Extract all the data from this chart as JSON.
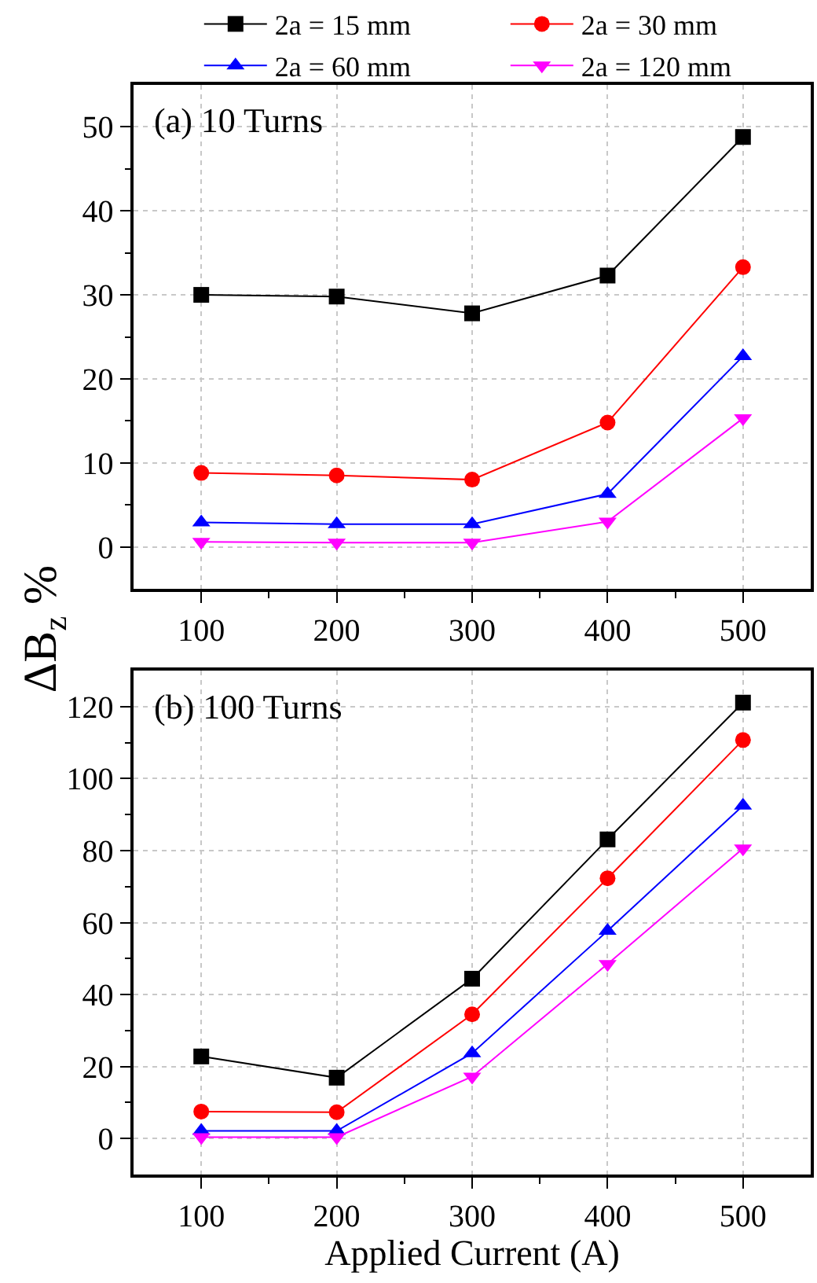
{
  "chart_data": [
    {
      "type": "line",
      "x": [
        100,
        200,
        300,
        400,
        500
      ],
      "xlim": [
        50,
        550
      ],
      "xticks": [
        100,
        {
          "value": 150,
          "label": null
        },
        200,
        {
          "value": 250,
          "label": null
        },
        300,
        {
          "value": 350,
          "label": null
        },
        400,
        {
          "value": 450,
          "label": null
        },
        500
      ],
      "ylim": [
        -5,
        55
      ],
      "yticks": [
        0,
        {
          "value": 5,
          "label": null
        },
        10,
        {
          "value": 15,
          "label": null
        },
        20,
        {
          "value": 25,
          "label": null
        },
        30,
        {
          "value": 35,
          "label": null
        },
        40,
        {
          "value": 45,
          "label": null
        },
        50
      ],
      "ylabel": "ΔB$_{z}$ %",
      "annotations": [
        "(a) 10 Turns"
      ],
      "grid": true,
      "legend": "top",
      "line_style": "solid",
      "series": [
        {
          "name": "2a = 15 mm",
          "color": "#000000",
          "marker": "square",
          "values": [
            30.0,
            29.8,
            27.8,
            32.3,
            48.8
          ]
        },
        {
          "name": "2a = 30 mm",
          "color": "#ff0000",
          "marker": "circle",
          "values": [
            8.8,
            8.5,
            8.0,
            14.8,
            33.3
          ]
        },
        {
          "name": "2a = 60 mm",
          "color": "#0000ff",
          "marker": "triangle",
          "values": [
            2.9,
            2.7,
            2.7,
            6.3,
            22.7
          ]
        },
        {
          "name": "2a = 120 mm",
          "color": "#ff00ff",
          "marker": "triangle-down",
          "values": [
            0.6,
            0.5,
            0.5,
            3.0,
            15.3
          ]
        }
      ]
    },
    {
      "type": "line",
      "x": [
        100,
        200,
        300,
        400,
        500
      ],
      "xlim": [
        50,
        550
      ],
      "xticks": [
        100,
        {
          "value": 150,
          "label": null
        },
        200,
        {
          "value": 250,
          "label": null
        },
        300,
        {
          "value": 350,
          "label": null
        },
        400,
        {
          "value": 450,
          "label": null
        },
        500
      ],
      "ylim": [
        -10,
        130
      ],
      "yticks": [
        0,
        {
          "value": 10,
          "label": null
        },
        20,
        {
          "value": 30,
          "label": null
        },
        40,
        {
          "value": 50,
          "label": null
        },
        60,
        {
          "value": 70,
          "label": null
        },
        80,
        {
          "value": 90,
          "label": null
        },
        100,
        {
          "value": 110,
          "label": null
        },
        120
      ],
      "xlabel": "Applied Current (A)",
      "annotations": [
        "(b) 100 Turns"
      ],
      "grid": true,
      "line_style": "solid",
      "series": [
        {
          "name": "2a = 15 mm",
          "color": "#000000",
          "marker": "square",
          "values": [
            22.8,
            16.9,
            44.4,
            83.1,
            121.1
          ]
        },
        {
          "name": "2a = 30 mm",
          "color": "#ff0000",
          "marker": "circle",
          "values": [
            7.5,
            7.3,
            34.5,
            72.3,
            110.7
          ]
        },
        {
          "name": "2a = 60 mm",
          "color": "#0000ff",
          "marker": "triangle",
          "values": [
            2.1,
            2.1,
            23.7,
            57.7,
            92.5
          ]
        },
        {
          "name": "2a = 120 mm",
          "color": "#ff00ff",
          "marker": "triangle-down",
          "values": [
            0.4,
            0.4,
            17.2,
            48.5,
            80.6
          ]
        }
      ]
    }
  ]
}
